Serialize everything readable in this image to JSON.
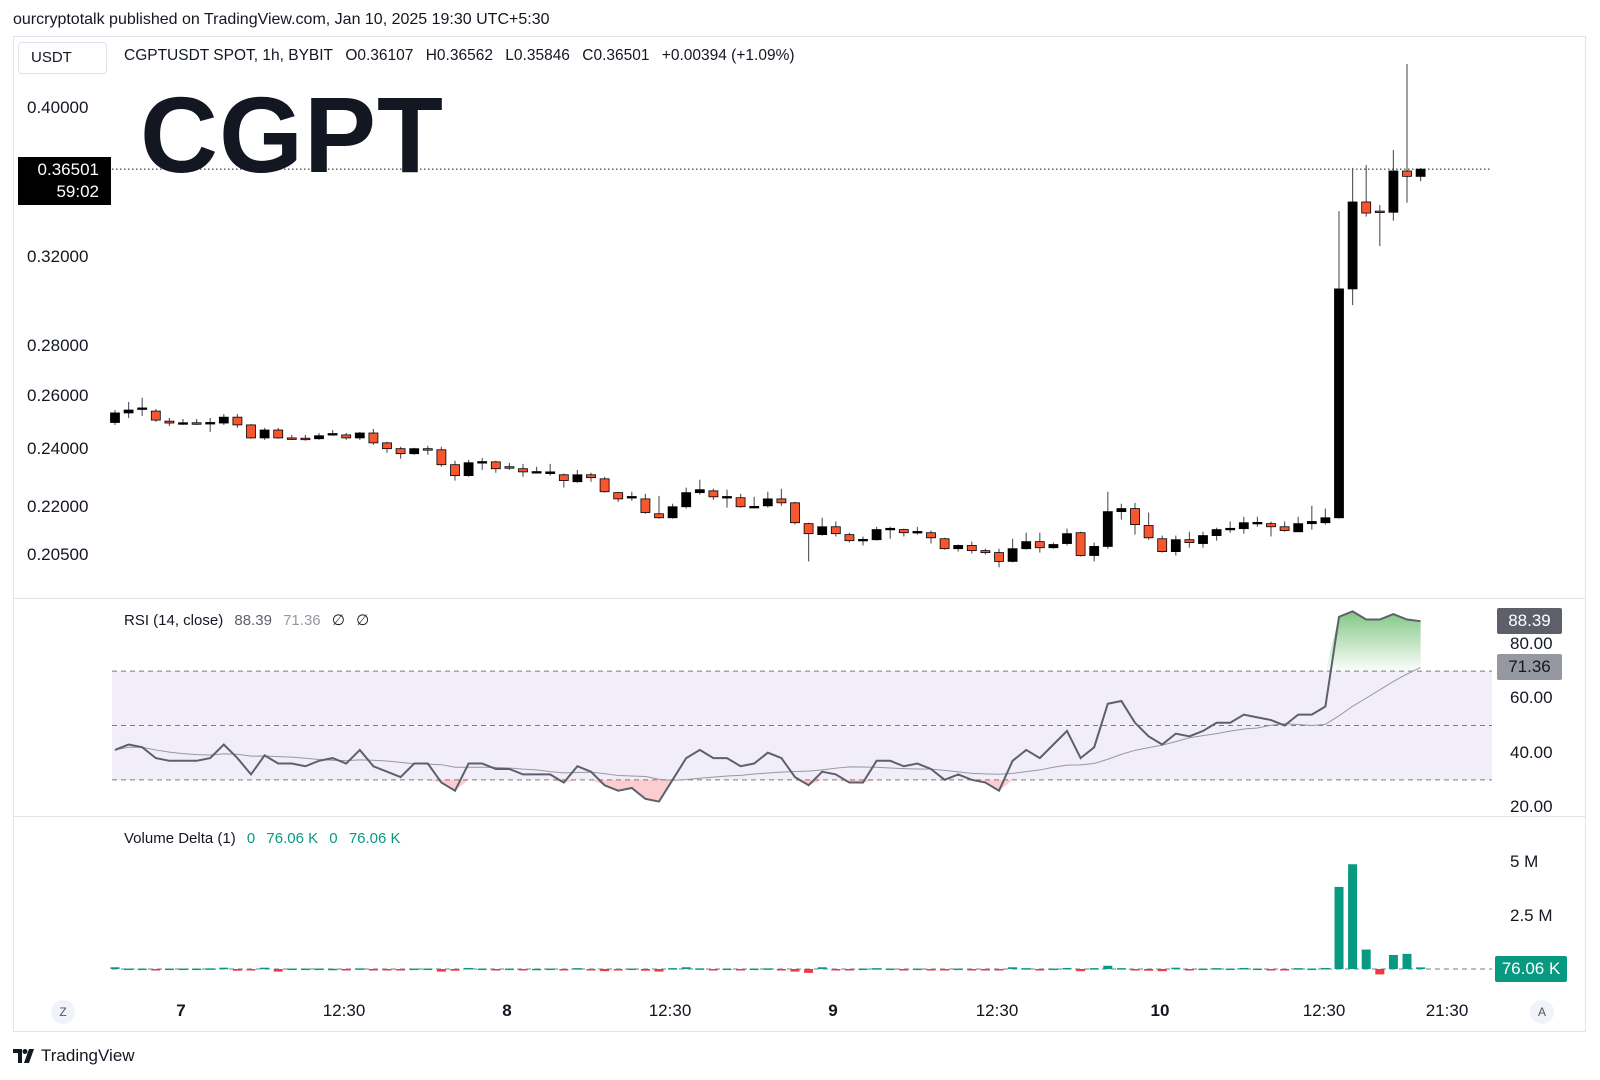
{
  "publisher_line": "ourcryptotalk published on TradingView.com, Jan 10, 2025 19:30 UTC+5:30",
  "currency_button": "USDT",
  "legend": {
    "symbol": "CGPTUSDT SPOT, 1h, BYBIT",
    "open": "O0.36107",
    "high": "H0.36562",
    "low": "L0.35846",
    "close": "C0.36501",
    "change": "+0.00394 (+1.09%)"
  },
  "watermark": "CGPT",
  "current_price": {
    "value": "0.36501",
    "countdown": "59:02"
  },
  "rsi_legend": {
    "name": "RSI (14, close)",
    "value": "88.39",
    "ma": "71.36",
    "n1": "∅",
    "n2": "∅"
  },
  "vd_legend": {
    "name": "Volume Delta (1)",
    "v1": "0",
    "v2": "76.06 K",
    "v3": "0",
    "v4": "76.06 K"
  },
  "rsi_axis": [
    "80.00",
    "60.00",
    "40.00",
    "20.00"
  ],
  "rsi_badges": {
    "value": "88.39",
    "ma": "71.36"
  },
  "vd_axis": [
    "5 M",
    "2.5 M"
  ],
  "vd_badge": "76.06 K",
  "time_labels": [
    {
      "t": "7",
      "day": true
    },
    {
      "t": "12:30",
      "day": false
    },
    {
      "t": "8",
      "day": true
    },
    {
      "t": "12:30",
      "day": false
    },
    {
      "t": "9",
      "day": true
    },
    {
      "t": "12:30",
      "day": false
    },
    {
      "t": "10",
      "day": true
    },
    {
      "t": "12:30",
      "day": false
    },
    {
      "t": "21:30",
      "day": false
    }
  ],
  "axis_buttons": {
    "left": "Z",
    "right": "A"
  },
  "footer_logo": "TradingView",
  "colors": {
    "up": "#000000",
    "down": "#f7572f",
    "rsi": "#5d606b",
    "rsi_band": "#7e57c2",
    "vd_pos": "#089981",
    "vd_neg": "#f23645"
  },
  "chart_data": [
    {
      "type": "candlestick",
      "interval": "1h",
      "scale": "log",
      "yticks": [
        "0.40000",
        "0.32000",
        "0.28000",
        "0.26000",
        "0.24000",
        "0.22000",
        "0.20500"
      ],
      "ylim": [
        0.2,
        0.43
      ],
      "ohlc": [
        [
          0.2498,
          0.2545,
          0.2489,
          0.2534
        ],
        [
          0.2534,
          0.2576,
          0.2515,
          0.2545
        ],
        [
          0.2549,
          0.2592,
          0.2522,
          0.2553
        ],
        [
          0.2541,
          0.2549,
          0.25,
          0.2507
        ],
        [
          0.2503,
          0.2515,
          0.2485,
          0.2496
        ],
        [
          0.2496,
          0.2511,
          0.2489,
          0.2497
        ],
        [
          0.2497,
          0.2511,
          0.2489,
          0.2496
        ],
        [
          0.2497,
          0.2515,
          0.2463,
          0.2498
        ],
        [
          0.2496,
          0.253,
          0.2489,
          0.2518
        ],
        [
          0.2518,
          0.253,
          0.2478,
          0.2489
        ],
        [
          0.2489,
          0.2492,
          0.2438,
          0.2441
        ],
        [
          0.2441,
          0.2478,
          0.2434,
          0.247
        ],
        [
          0.247,
          0.2478,
          0.2438,
          0.2441
        ],
        [
          0.2441,
          0.2452,
          0.2434,
          0.244
        ],
        [
          0.244,
          0.2452,
          0.2431,
          0.2439
        ],
        [
          0.2438,
          0.2459,
          0.2434,
          0.2449
        ],
        [
          0.2456,
          0.247,
          0.2449,
          0.2457
        ],
        [
          0.2452,
          0.2459,
          0.2434,
          0.2441
        ],
        [
          0.2441,
          0.2463,
          0.2434,
          0.2459
        ],
        [
          0.2459,
          0.2474,
          0.2416,
          0.2423
        ],
        [
          0.2423,
          0.2427,
          0.2387,
          0.2402
        ],
        [
          0.2402,
          0.2409,
          0.2366,
          0.2384
        ],
        [
          0.2384,
          0.2405,
          0.238,
          0.2402
        ],
        [
          0.2402,
          0.2412,
          0.238,
          0.2401
        ],
        [
          0.2398,
          0.2409,
          0.2338,
          0.2345
        ],
        [
          0.2345,
          0.2359,
          0.229,
          0.2307
        ],
        [
          0.2307,
          0.2362,
          0.2303,
          0.2352
        ],
        [
          0.2355,
          0.2369,
          0.2327,
          0.2356
        ],
        [
          0.2355,
          0.2359,
          0.2317,
          0.2331
        ],
        [
          0.2338,
          0.2352,
          0.2327,
          0.2337
        ],
        [
          0.2331,
          0.2348,
          0.2303,
          0.232
        ],
        [
          0.232,
          0.2338,
          0.2317,
          0.2321
        ],
        [
          0.2314,
          0.2348,
          0.2307,
          0.232
        ],
        [
          0.231,
          0.2314,
          0.2266,
          0.229
        ],
        [
          0.2286,
          0.2327,
          0.2283,
          0.231
        ],
        [
          0.231,
          0.2317,
          0.2286,
          0.23
        ],
        [
          0.2296,
          0.2303,
          0.2249,
          0.2252
        ],
        [
          0.2249,
          0.2252,
          0.2218,
          0.2228
        ],
        [
          0.2235,
          0.2252,
          0.2222,
          0.2236
        ],
        [
          0.2228,
          0.2245,
          0.2179,
          0.2183
        ],
        [
          0.2179,
          0.2238,
          0.2163,
          0.2166
        ],
        [
          0.2166,
          0.2212,
          0.2163,
          0.2202
        ],
        [
          0.2202,
          0.2266,
          0.2196,
          0.2249
        ],
        [
          0.2249,
          0.2293,
          0.2242,
          0.2259
        ],
        [
          0.2255,
          0.2262,
          0.2225,
          0.2235
        ],
        [
          0.2235,
          0.2259,
          0.2199,
          0.2236
        ],
        [
          0.2232,
          0.2245,
          0.2199,
          0.2202
        ],
        [
          0.2202,
          0.2235,
          0.2199,
          0.2203
        ],
        [
          0.2205,
          0.2252,
          0.2199,
          0.2228
        ],
        [
          0.2228,
          0.2262,
          0.2205,
          0.2215
        ],
        [
          0.2215,
          0.2218,
          0.2144,
          0.215
        ],
        [
          0.2147,
          0.215,
          0.2029,
          0.2115
        ],
        [
          0.2112,
          0.2166,
          0.2109,
          0.2137
        ],
        [
          0.2137,
          0.2154,
          0.2106,
          0.2115
        ],
        [
          0.2112,
          0.2118,
          0.2087,
          0.2093
        ],
        [
          0.2096,
          0.2106,
          0.2078,
          0.2097
        ],
        [
          0.2096,
          0.2137,
          0.2093,
          0.2128
        ],
        [
          0.2131,
          0.2137,
          0.2099,
          0.2132
        ],
        [
          0.2128,
          0.2131,
          0.2106,
          0.2118
        ],
        [
          0.2121,
          0.2137,
          0.2112,
          0.2122
        ],
        [
          0.2118,
          0.2125,
          0.2084,
          0.2102
        ],
        [
          0.2099,
          0.2102,
          0.2065,
          0.2068
        ],
        [
          0.2068,
          0.2081,
          0.2059,
          0.2078
        ],
        [
          0.2078,
          0.209,
          0.2053,
          0.2062
        ],
        [
          0.2062,
          0.2068,
          0.205,
          0.2056
        ],
        [
          0.2056,
          0.2068,
          0.2011,
          0.2029
        ],
        [
          0.2029,
          0.2099,
          0.2026,
          0.2068
        ],
        [
          0.2068,
          0.2118,
          0.2065,
          0.209
        ],
        [
          0.209,
          0.2118,
          0.2056,
          0.2071
        ],
        [
          0.2071,
          0.2087,
          0.2068,
          0.2081
        ],
        [
          0.2084,
          0.2131,
          0.2078,
          0.2115
        ],
        [
          0.2118,
          0.2121,
          0.2044,
          0.2047
        ],
        [
          0.2047,
          0.2087,
          0.2029,
          0.2075
        ],
        [
          0.2075,
          0.2252,
          0.2068,
          0.2186
        ],
        [
          0.2186,
          0.2212,
          0.216,
          0.2196
        ],
        [
          0.2196,
          0.2215,
          0.2112,
          0.2144
        ],
        [
          0.2141,
          0.2183,
          0.2096,
          0.2102
        ],
        [
          0.2099,
          0.2109,
          0.2056,
          0.2059
        ],
        [
          0.2059,
          0.2109,
          0.2047,
          0.2096
        ],
        [
          0.2096,
          0.2121,
          0.2071,
          0.2087
        ],
        [
          0.2084,
          0.2121,
          0.2071,
          0.2109
        ],
        [
          0.2109,
          0.2134,
          0.2093,
          0.2128
        ],
        [
          0.2131,
          0.2154,
          0.2118,
          0.2132
        ],
        [
          0.2131,
          0.2169,
          0.2115,
          0.215
        ],
        [
          0.215,
          0.2169,
          0.2137,
          0.2151
        ],
        [
          0.2147,
          0.2154,
          0.2106,
          0.2137
        ],
        [
          0.2137,
          0.2154,
          0.2121,
          0.2125
        ],
        [
          0.2121,
          0.2169,
          0.2121,
          0.2147
        ],
        [
          0.2147,
          0.2205,
          0.2128,
          0.2154
        ],
        [
          0.215,
          0.2196,
          0.2144,
          0.2166
        ],
        [
          0.2166,
          0.3428,
          0.2163,
          0.3051
        ],
        [
          0.3051,
          0.3657,
          0.2978,
          0.3475
        ],
        [
          0.3475,
          0.3673,
          0.34,
          0.3418
        ],
        [
          0.3428,
          0.3459,
          0.3253,
          0.3422
        ],
        [
          0.3422,
          0.3756,
          0.3379,
          0.364
        ],
        [
          0.364,
          0.4272,
          0.3471,
          0.3611
        ],
        [
          0.36107,
          0.36562,
          0.35846,
          0.36501
        ]
      ],
      "last_price": 0.36501
    },
    {
      "type": "line",
      "name": "RSI (14, close)",
      "ylim": [
        15,
        95
      ],
      "bands": {
        "upper": 70,
        "middle": 50,
        "lower": 30
      },
      "ma_last": 71.36,
      "values": [
        41,
        43,
        42,
        38,
        37,
        37,
        37,
        38,
        43,
        38,
        32,
        39,
        36,
        36,
        35,
        37,
        38,
        36,
        41,
        35,
        33,
        31,
        36,
        36,
        29,
        26,
        36,
        36,
        34,
        34,
        32,
        32,
        32,
        29,
        35,
        33,
        28,
        26,
        27,
        23,
        22,
        30,
        38,
        41,
        38,
        38,
        35,
        36,
        40,
        38,
        31,
        28,
        33,
        32,
        29,
        29,
        37,
        37,
        35,
        36,
        34,
        30,
        32,
        30,
        29,
        26,
        37,
        41,
        38,
        43,
        48,
        38,
        42,
        58,
        59,
        51,
        46,
        43,
        47,
        46,
        48,
        51,
        51,
        54,
        53,
        52,
        50,
        54,
        54,
        57,
        90,
        92,
        89,
        89,
        91,
        89,
        88.39
      ]
    },
    {
      "type": "bar",
      "name": "Volume Delta (1)",
      "unit": "M",
      "yticks": [
        2.5,
        5
      ],
      "values": [
        0.08,
        0.02,
        0.02,
        -0.03,
        0.02,
        0.02,
        0.02,
        0.03,
        0.06,
        -0.08,
        -0.03,
        0.06,
        -0.12,
        0.02,
        0.02,
        0.02,
        0.01,
        -0.02,
        0.03,
        -0.03,
        -0.02,
        -0.03,
        0.02,
        0.02,
        -0.12,
        -0.08,
        0.05,
        0.02,
        -0.02,
        0.02,
        -0.02,
        0.01,
        0.02,
        -0.03,
        0.04,
        -0.03,
        -0.1,
        -0.04,
        0.02,
        -0.08,
        -0.12,
        0.04,
        0.08,
        0.03,
        -0.03,
        0.02,
        -0.04,
        0.02,
        0.03,
        -0.02,
        -0.12,
        -0.18,
        0.08,
        -0.05,
        -0.04,
        0.02,
        0.04,
        0.02,
        -0.02,
        0.02,
        -0.04,
        -0.06,
        0.02,
        -0.03,
        -0.02,
        -0.06,
        0.08,
        0.04,
        -0.02,
        0.02,
        0.05,
        -0.1,
        0.04,
        0.15,
        0.04,
        -0.06,
        -0.08,
        -0.1,
        0.06,
        -0.02,
        0.02,
        0.04,
        0.02,
        0.05,
        0.02,
        -0.02,
        -0.02,
        0.04,
        0.02,
        0.05,
        3.8,
        4.85,
        0.9,
        -0.25,
        0.65,
        0.7,
        0.076
      ]
    }
  ]
}
